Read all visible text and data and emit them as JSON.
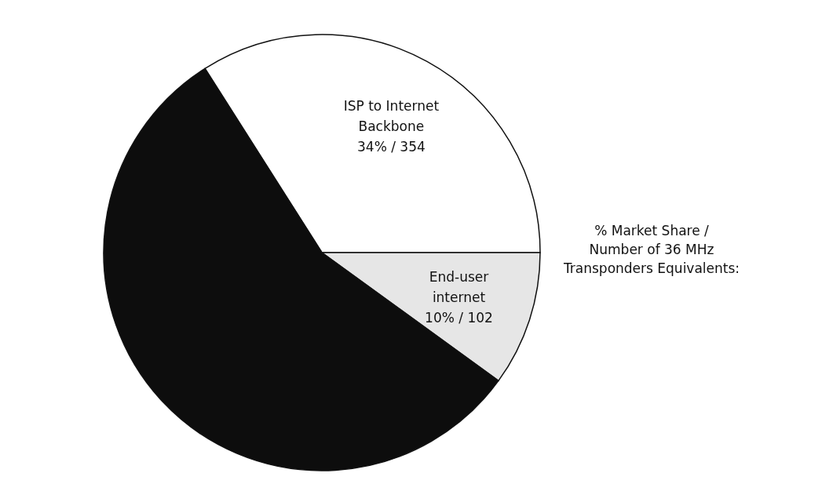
{
  "chart_data": {
    "type": "pie",
    "categories": [
      "ISP to Internet Backbone",
      "End-user internet",
      null
    ],
    "values": [
      34,
      10,
      56
    ],
    "value_labels": [
      "34% / 354",
      "10% / 102",
      null
    ],
    "colors": [
      "#ffffff",
      "#e6e6e6",
      "#0d0d0d"
    ],
    "annotations": [
      "% Market Share /\nNumber of 36 MHz\nTransponders Equivalents:"
    ]
  }
}
